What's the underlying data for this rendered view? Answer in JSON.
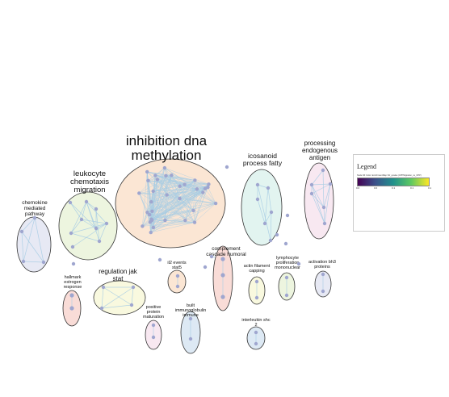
{
  "colors": {
    "edge": "#a9cde4",
    "node": "#9fa6cf",
    "outline": "#333333"
  },
  "clusters": [
    {
      "id": "inhibition",
      "label_lines": [
        "inhibition dna",
        "methylation"
      ],
      "fill": "#fbe6d4",
      "node_count": 34,
      "edge_density": "dense"
    },
    {
      "id": "leukocyte",
      "label_lines": [
        "leukocyte",
        "chemotaxis",
        "migration"
      ],
      "fill": "#edf5df",
      "node_count": 9,
      "edge_density": "medium"
    },
    {
      "id": "icosanoid",
      "label_lines": [
        "icosanoid",
        "process fatty"
      ],
      "fill": "#e2f4f0",
      "node_count": 6,
      "edge_density": "medium"
    },
    {
      "id": "processing",
      "label_lines": [
        "processing",
        "endogenous",
        "antigen"
      ],
      "fill": "#f8e8f1",
      "node_count": 6,
      "edge_density": "medium"
    },
    {
      "id": "chemokine",
      "label_lines": [
        "chemokine",
        "mediated",
        "pathway"
      ],
      "fill": "#e7e9f4",
      "node_count": 4,
      "edge_density": "full"
    },
    {
      "id": "regulation",
      "label_lines": [
        "regulation jak",
        "stat"
      ],
      "fill": "#f9f9df",
      "node_count": 4,
      "edge_density": "full"
    },
    {
      "id": "complement",
      "label_lines": [
        "complement",
        "cascade humoral"
      ],
      "fill": "#f9dcd7",
      "node_count": 3,
      "edge_density": "chain"
    },
    {
      "id": "il2",
      "label_lines": [
        "il2 events",
        "stat5"
      ],
      "fill": "#fbe6d4",
      "node_count": 2,
      "edge_density": "chain"
    },
    {
      "id": "hallmark",
      "label_lines": [
        "hallmark",
        "estrogen",
        "response"
      ],
      "fill": "#f9dcd7",
      "node_count": 2,
      "edge_density": "chain"
    },
    {
      "id": "actin",
      "label_lines": [
        "actin filament",
        "capping"
      ],
      "fill": "#f9f9df",
      "node_count": 2,
      "edge_density": "chain"
    },
    {
      "id": "lymphocyte",
      "label_lines": [
        "lymphocyte",
        "proliferation",
        "mononuclear"
      ],
      "fill": "#edf5df",
      "node_count": 2,
      "edge_density": "chain"
    },
    {
      "id": "activation",
      "label_lines": [
        "activation bh3",
        "proteins"
      ],
      "fill": "#e7e9f4",
      "node_count": 2,
      "edge_density": "chain"
    },
    {
      "id": "positive",
      "label_lines": [
        "positive",
        "protein",
        "maturation"
      ],
      "fill": "#f8e8f1",
      "node_count": 2,
      "edge_density": "chain"
    },
    {
      "id": "built",
      "label_lines": [
        "built",
        "immunoglobulin",
        "immune"
      ],
      "fill": "#dde9f4",
      "node_count": 2,
      "edge_density": "chain"
    },
    {
      "id": "interleukin",
      "label_lines": [
        "interleukin shc",
        "2"
      ],
      "fill": "#dde9f4",
      "node_count": 2,
      "edge_density": "chain"
    }
  ],
  "singleton_count": 9,
  "legend": {
    "title": "Legend",
    "subtitle": "Node Fill Color:  EnrichmentMap::fdr_qvalue (CPPMigration_vs_OPP)",
    "ticks": [
      "0.0",
      "0.0",
      "0.1",
      "0.1",
      "0.1"
    ],
    "gradient": [
      "#440154",
      "#3b528b",
      "#21918c",
      "#5ec962",
      "#fde725"
    ]
  }
}
